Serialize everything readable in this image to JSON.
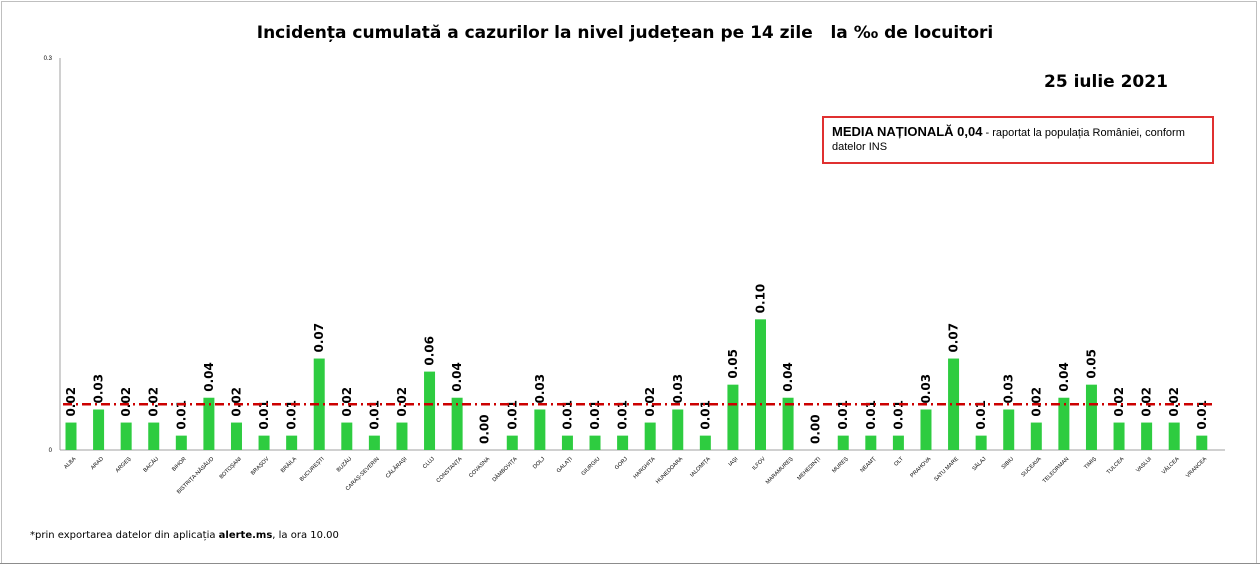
{
  "chart_data": {
    "type": "bar",
    "title": "Incidența cumulată a cazurilor la nivel județean pe 14 zile   la ‰ de locuitori",
    "date": "25 iulie 2021",
    "ylim": [
      0,
      0.3
    ],
    "y_ticks": [
      "0",
      "0.3"
    ],
    "bar_color": "#2ecc40",
    "reference_line": {
      "value": 0.035,
      "color": "#cc0000",
      "style": "dashed"
    },
    "categories": [
      "ALBA",
      "ARAD",
      "ARGEȘ",
      "BACĂU",
      "BIHOR",
      "BISTRIȚA-NĂSĂUD",
      "BOTOȘANI",
      "BRAȘOV",
      "BRĂILA",
      "BUCUREȘTI",
      "BUZĂU",
      "CARAȘ-SEVERIN",
      "CĂLĂRAȘI",
      "CLUJ",
      "CONSTANȚA",
      "COVASNA",
      "DÂMBOVIȚA",
      "DOLJ",
      "GALAȚI",
      "GIURGIU",
      "GORJ",
      "HARGHITA",
      "HUNEDOARA",
      "IALOMIȚA",
      "IAȘI",
      "ILFOV",
      "MARAMUREȘ",
      "MEHEDINȚI",
      "MUREȘ",
      "NEAMȚ",
      "OLT",
      "PRAHOVA",
      "SATU MARE",
      "SĂLAJ",
      "SIBIU",
      "SUCEAVA",
      "TELEORMAN",
      "TIMIȘ",
      "TULCEA",
      "VASLUI",
      "VÂLCEA",
      "VRANCEA"
    ],
    "values": [
      0.021,
      0.031,
      0.021,
      0.021,
      0.011,
      0.04,
      0.021,
      0.011,
      0.011,
      0.07,
      0.021,
      0.011,
      0.021,
      0.06,
      0.04,
      0.0,
      0.011,
      0.031,
      0.011,
      0.011,
      0.011,
      0.021,
      0.031,
      0.011,
      0.05,
      0.1,
      0.04,
      0.0,
      0.011,
      0.011,
      0.011,
      0.031,
      0.07,
      0.011,
      0.031,
      0.021,
      0.04,
      0.05,
      0.021,
      0.021,
      0.021,
      0.011
    ],
    "labels": [
      "0.02",
      "0.03",
      "0.02",
      "0.02",
      "0.01",
      "0.04",
      "0.02",
      "0.01",
      "0.01",
      "0.07",
      "0.02",
      "0.01",
      "0.02",
      "0.06",
      "0.04",
      "0.00",
      "0.01",
      "0.03",
      "0.01",
      "0.01",
      "0.01",
      "0.02",
      "0.03",
      "0.01",
      "0.05",
      "0.10",
      "0.04",
      "0.00",
      "0.01",
      "0.01",
      "0.01",
      "0.03",
      "0.07",
      "0.01",
      "0.03",
      "0.02",
      "0.04",
      "0.05",
      "0.02",
      "0.02",
      "0.02",
      "0.01"
    ]
  },
  "media_box": {
    "bold_text": "MEDIA NAȚIONALĂ 0,04",
    "rest_text": " - raportat la populația României, conform datelor INS"
  },
  "footnote": {
    "prefix": "*prin exportarea datelor din aplicația ",
    "app": "alerte.ms",
    "suffix": ", la ora 10.00"
  }
}
